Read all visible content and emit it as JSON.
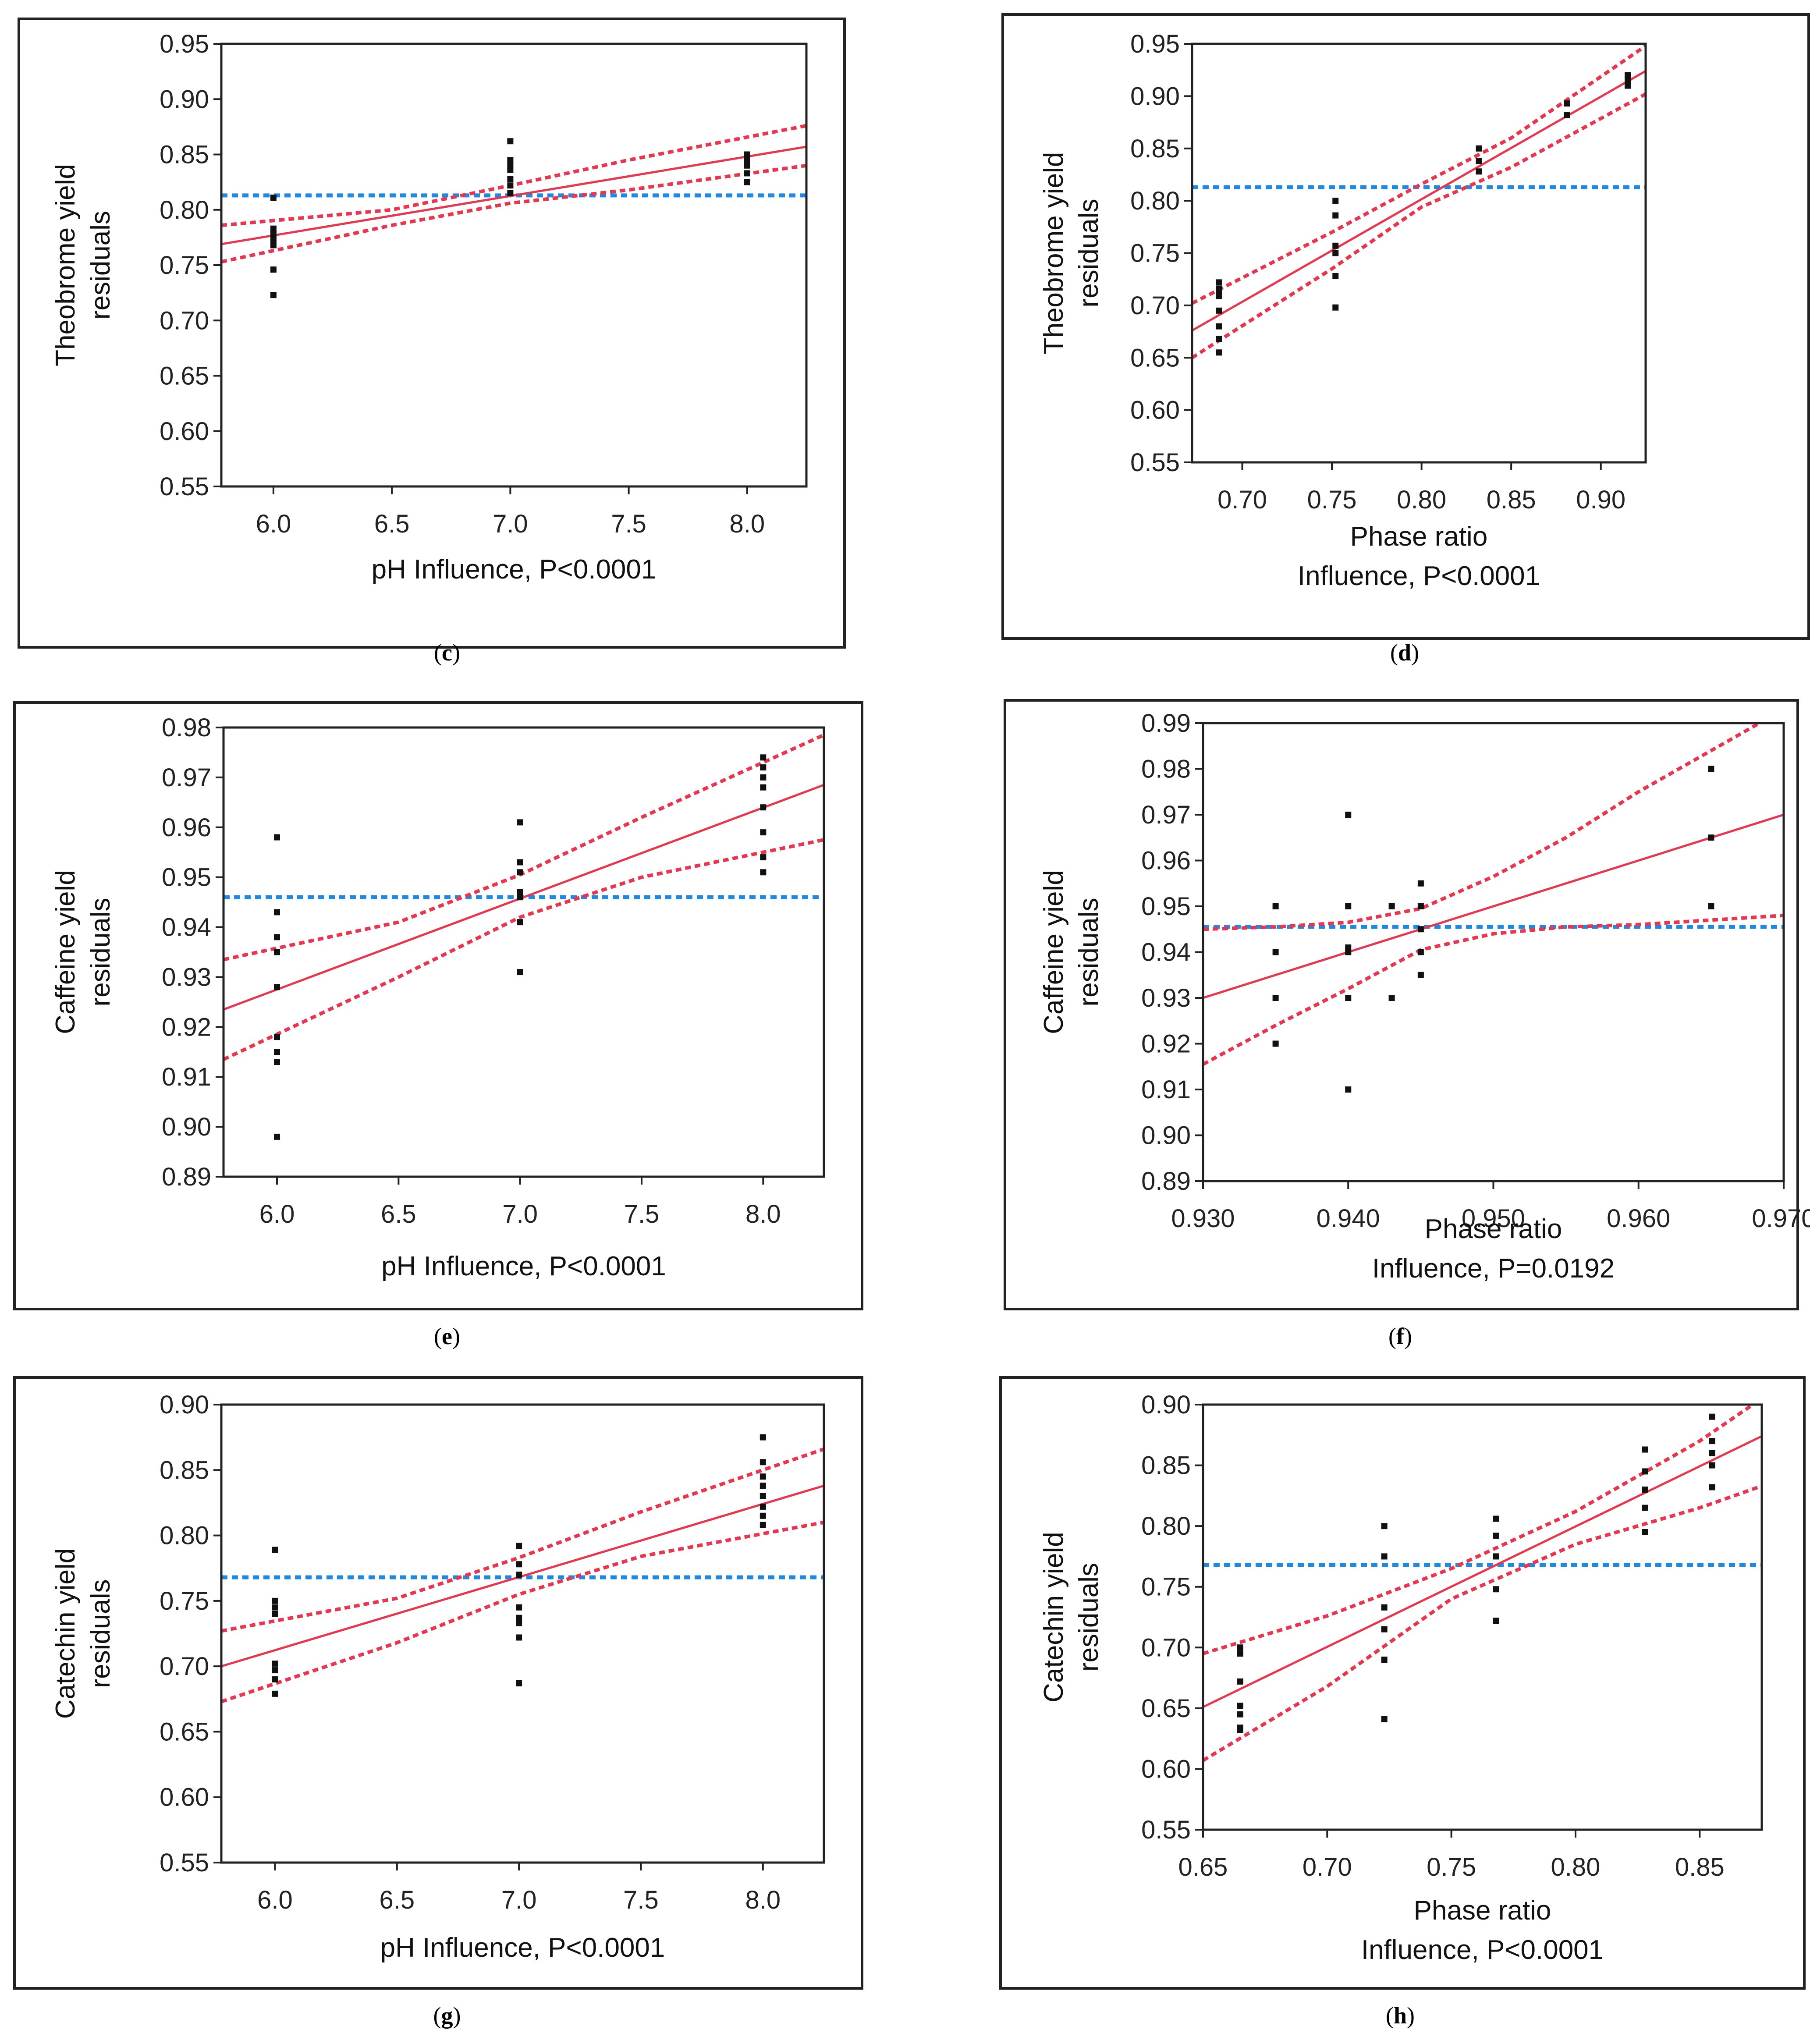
{
  "figure": {
    "colors": {
      "fit": "#e8364e",
      "ci": "#e8364e",
      "mean": "#1e88e5",
      "points": "#111111",
      "frame": "#222222"
    }
  },
  "chart_data": [
    {
      "id": "c",
      "caption": "c",
      "type": "scatter",
      "ylabel_lines": [
        "Theobrome yield",
        "residuals"
      ],
      "xlabel_lines": [
        "pH Influence, P<0.0001"
      ],
      "xlim": [
        5.78,
        8.25
      ],
      "ylim": [
        0.55,
        0.95
      ],
      "xticks": [
        6.0,
        6.5,
        7.0,
        7.5,
        8.0
      ],
      "xtick_labels": [
        "6.0",
        "6.5",
        "7.0",
        "7.5",
        "8.0"
      ],
      "yticks": [
        0.55,
        0.6,
        0.65,
        0.7,
        0.75,
        0.8,
        0.85,
        0.9,
        0.95
      ],
      "ytick_labels": [
        "0.55",
        "0.60",
        "0.65",
        "0.70",
        "0.75",
        "0.80",
        "0.85",
        "0.90",
        "0.95"
      ],
      "mean": 0.813,
      "fit": [
        [
          5.78,
          0.769
        ],
        [
          8.25,
          0.857
        ]
      ],
      "ci_upper": [
        [
          5.78,
          0.786
        ],
        [
          6.5,
          0.8
        ],
        [
          7.0,
          0.822
        ],
        [
          7.5,
          0.845
        ],
        [
          8.25,
          0.876
        ]
      ],
      "ci_lower": [
        [
          5.78,
          0.753
        ],
        [
          6.5,
          0.786
        ],
        [
          7.0,
          0.806
        ],
        [
          7.5,
          0.818
        ],
        [
          8.25,
          0.84
        ]
      ],
      "points": [
        {
          "x": 6.0,
          "y": 0.811
        },
        {
          "x": 6.0,
          "y": 0.783
        },
        {
          "x": 6.0,
          "y": 0.778
        },
        {
          "x": 6.0,
          "y": 0.773
        },
        {
          "x": 6.0,
          "y": 0.768
        },
        {
          "x": 6.0,
          "y": 0.746
        },
        {
          "x": 6.0,
          "y": 0.723
        },
        {
          "x": 7.0,
          "y": 0.862
        },
        {
          "x": 7.0,
          "y": 0.845
        },
        {
          "x": 7.0,
          "y": 0.84
        },
        {
          "x": 7.0,
          "y": 0.836
        },
        {
          "x": 7.0,
          "y": 0.828
        },
        {
          "x": 7.0,
          "y": 0.822
        },
        {
          "x": 7.0,
          "y": 0.815
        },
        {
          "x": 8.0,
          "y": 0.85
        },
        {
          "x": 8.0,
          "y": 0.845
        },
        {
          "x": 8.0,
          "y": 0.84
        },
        {
          "x": 8.0,
          "y": 0.833
        },
        {
          "x": 8.0,
          "y": 0.825
        }
      ]
    },
    {
      "id": "d",
      "caption": "d",
      "type": "scatter",
      "ylabel_lines": [
        "Theobrome yield",
        "residuals"
      ],
      "xlabel_lines": [
        "Phase ratio",
        "Influence, P<0.0001"
      ],
      "xlim": [
        0.672,
        0.925
      ],
      "ylim": [
        0.55,
        0.95
      ],
      "xticks": [
        0.7,
        0.75,
        0.8,
        0.85,
        0.9
      ],
      "xtick_labels": [
        "0.70",
        "0.75",
        "0.80",
        "0.85",
        "0.90"
      ],
      "yticks": [
        0.55,
        0.6,
        0.65,
        0.7,
        0.75,
        0.8,
        0.85,
        0.9,
        0.95
      ],
      "ytick_labels": [
        "0.55",
        "0.60",
        "0.65",
        "0.70",
        "0.75",
        "0.80",
        "0.85",
        "0.90",
        "0.95"
      ],
      "mean": 0.813,
      "fit": [
        [
          0.672,
          0.676
        ],
        [
          0.925,
          0.924
        ]
      ],
      "ci_upper": [
        [
          0.672,
          0.702
        ],
        [
          0.75,
          0.77
        ],
        [
          0.8,
          0.816
        ],
        [
          0.85,
          0.86
        ],
        [
          0.925,
          0.948
        ]
      ],
      "ci_lower": [
        [
          0.672,
          0.65
        ],
        [
          0.75,
          0.735
        ],
        [
          0.8,
          0.794
        ],
        [
          0.85,
          0.832
        ],
        [
          0.925,
          0.902
        ]
      ],
      "points": [
        {
          "x": 0.687,
          "y": 0.722
        },
        {
          "x": 0.687,
          "y": 0.716
        },
        {
          "x": 0.687,
          "y": 0.713
        },
        {
          "x": 0.687,
          "y": 0.709
        },
        {
          "x": 0.687,
          "y": 0.695
        },
        {
          "x": 0.687,
          "y": 0.68
        },
        {
          "x": 0.687,
          "y": 0.668
        },
        {
          "x": 0.687,
          "y": 0.655
        },
        {
          "x": 0.752,
          "y": 0.8
        },
        {
          "x": 0.752,
          "y": 0.786
        },
        {
          "x": 0.752,
          "y": 0.757
        },
        {
          "x": 0.752,
          "y": 0.75
        },
        {
          "x": 0.752,
          "y": 0.728
        },
        {
          "x": 0.752,
          "y": 0.698
        },
        {
          "x": 0.832,
          "y": 0.85
        },
        {
          "x": 0.832,
          "y": 0.838
        },
        {
          "x": 0.832,
          "y": 0.828
        },
        {
          "x": 0.881,
          "y": 0.893
        },
        {
          "x": 0.881,
          "y": 0.882
        },
        {
          "x": 0.915,
          "y": 0.92
        },
        {
          "x": 0.915,
          "y": 0.915
        },
        {
          "x": 0.915,
          "y": 0.91
        }
      ]
    },
    {
      "id": "e",
      "caption": "e",
      "type": "scatter",
      "ylabel_lines": [
        "Caffeine yield",
        "residuals"
      ],
      "xlabel_lines": [
        "pH Influence, P<0.0001"
      ],
      "xlim": [
        5.78,
        8.25
      ],
      "ylim": [
        0.89,
        0.98
      ],
      "xticks": [
        6.0,
        6.5,
        7.0,
        7.5,
        8.0
      ],
      "xtick_labels": [
        "6.0",
        "6.5",
        "7.0",
        "7.5",
        "8.0"
      ],
      "yticks": [
        0.89,
        0.9,
        0.91,
        0.92,
        0.93,
        0.94,
        0.95,
        0.96,
        0.97,
        0.98
      ],
      "ytick_labels": [
        "0.89",
        "0.90",
        "0.91",
        "0.92",
        "0.93",
        "0.94",
        "0.95",
        "0.96",
        "0.97",
        "0.98"
      ],
      "mean": 0.946,
      "fit": [
        [
          5.78,
          0.9235
        ],
        [
          8.25,
          0.9685
        ]
      ],
      "ci_upper": [
        [
          5.78,
          0.9335
        ],
        [
          6.5,
          0.941
        ],
        [
          7.0,
          0.9505
        ],
        [
          7.5,
          0.962
        ],
        [
          8.25,
          0.9785
        ]
      ],
      "ci_lower": [
        [
          5.78,
          0.9135
        ],
        [
          6.5,
          0.93
        ],
        [
          7.0,
          0.942
        ],
        [
          7.5,
          0.95
        ],
        [
          8.25,
          0.9575
        ]
      ],
      "points": [
        {
          "x": 6.0,
          "y": 0.958
        },
        {
          "x": 6.0,
          "y": 0.943
        },
        {
          "x": 6.0,
          "y": 0.938
        },
        {
          "x": 6.0,
          "y": 0.935
        },
        {
          "x": 6.0,
          "y": 0.928
        },
        {
          "x": 6.0,
          "y": 0.918
        },
        {
          "x": 6.0,
          "y": 0.915
        },
        {
          "x": 6.0,
          "y": 0.913
        },
        {
          "x": 6.0,
          "y": 0.898
        },
        {
          "x": 7.0,
          "y": 0.961
        },
        {
          "x": 7.0,
          "y": 0.953
        },
        {
          "x": 7.0,
          "y": 0.951
        },
        {
          "x": 7.0,
          "y": 0.947
        },
        {
          "x": 7.0,
          "y": 0.946
        },
        {
          "x": 7.0,
          "y": 0.941
        },
        {
          "x": 7.0,
          "y": 0.931
        },
        {
          "x": 8.0,
          "y": 0.974
        },
        {
          "x": 8.0,
          "y": 0.972
        },
        {
          "x": 8.0,
          "y": 0.97
        },
        {
          "x": 8.0,
          "y": 0.968
        },
        {
          "x": 8.0,
          "y": 0.964
        },
        {
          "x": 8.0,
          "y": 0.959
        },
        {
          "x": 8.0,
          "y": 0.954
        },
        {
          "x": 8.0,
          "y": 0.951
        }
      ]
    },
    {
      "id": "f",
      "caption": "f",
      "type": "scatter",
      "ylabel_lines": [
        "Caffeine yield",
        "residuals"
      ],
      "xlabel_lines": [
        "Phase ratio",
        "Influence, P=0.0192"
      ],
      "xlim": [
        0.93,
        0.97
      ],
      "ylim": [
        0.89,
        0.99
      ],
      "xticks": [
        0.93,
        0.94,
        0.95,
        0.96,
        0.97
      ],
      "xtick_labels": [
        "0.930",
        "0.940",
        "0.950",
        "0.960",
        "0.970"
      ],
      "yticks": [
        0.89,
        0.9,
        0.91,
        0.92,
        0.93,
        0.94,
        0.95,
        0.96,
        0.97,
        0.98,
        0.99
      ],
      "ytick_labels": [
        "0.89",
        "0.90",
        "0.91",
        "0.92",
        "0.93",
        "0.94",
        "0.95",
        "0.96",
        "0.97",
        "0.98",
        "0.99"
      ],
      "mean": 0.9455,
      "fit": [
        [
          0.93,
          0.93
        ],
        [
          0.97,
          0.97
        ]
      ],
      "ci_upper": [
        [
          0.93,
          0.945
        ],
        [
          0.935,
          0.9455
        ],
        [
          0.94,
          0.9465
        ],
        [
          0.945,
          0.9495
        ],
        [
          0.95,
          0.9565
        ],
        [
          0.955,
          0.965
        ],
        [
          0.96,
          0.975
        ],
        [
          0.965,
          0.984
        ],
        [
          0.97,
          0.993
        ]
      ],
      "ci_lower": [
        [
          0.93,
          0.9155
        ],
        [
          0.935,
          0.924
        ],
        [
          0.94,
          0.932
        ],
        [
          0.945,
          0.9405
        ],
        [
          0.95,
          0.944
        ],
        [
          0.955,
          0.9455
        ],
        [
          0.96,
          0.946
        ],
        [
          0.965,
          0.947
        ],
        [
          0.97,
          0.948
        ]
      ],
      "points": [
        {
          "x": 0.935,
          "y": 0.95
        },
        {
          "x": 0.935,
          "y": 0.94
        },
        {
          "x": 0.935,
          "y": 0.93
        },
        {
          "x": 0.935,
          "y": 0.92
        },
        {
          "x": 0.94,
          "y": 0.97
        },
        {
          "x": 0.94,
          "y": 0.95
        },
        {
          "x": 0.94,
          "y": 0.941
        },
        {
          "x": 0.94,
          "y": 0.94
        },
        {
          "x": 0.94,
          "y": 0.93
        },
        {
          "x": 0.94,
          "y": 0.91
        },
        {
          "x": 0.943,
          "y": 0.95
        },
        {
          "x": 0.943,
          "y": 0.93
        },
        {
          "x": 0.945,
          "y": 0.955
        },
        {
          "x": 0.945,
          "y": 0.95
        },
        {
          "x": 0.945,
          "y": 0.945
        },
        {
          "x": 0.945,
          "y": 0.94
        },
        {
          "x": 0.945,
          "y": 0.935
        },
        {
          "x": 0.965,
          "y": 0.98
        },
        {
          "x": 0.965,
          "y": 0.965
        },
        {
          "x": 0.965,
          "y": 0.95
        }
      ]
    },
    {
      "id": "g",
      "caption": "g",
      "type": "scatter",
      "ylabel_lines": [
        "Catechin yield",
        "residuals"
      ],
      "xlabel_lines": [
        "pH Influence, P<0.0001"
      ],
      "xlim": [
        5.78,
        8.25
      ],
      "ylim": [
        0.55,
        0.9
      ],
      "xticks": [
        6.0,
        6.5,
        7.0,
        7.5,
        8.0
      ],
      "xtick_labels": [
        "6.0",
        "6.5",
        "7.0",
        "7.5",
        "8.0"
      ],
      "yticks": [
        0.55,
        0.6,
        0.65,
        0.7,
        0.75,
        0.8,
        0.85,
        0.9
      ],
      "ytick_labels": [
        "0.55",
        "0.60",
        "0.65",
        "0.70",
        "0.75",
        "0.80",
        "0.85",
        "0.90"
      ],
      "mean": 0.768,
      "fit": [
        [
          5.78,
          0.7
        ],
        [
          8.25,
          0.838
        ]
      ],
      "ci_upper": [
        [
          5.78,
          0.727
        ],
        [
          6.5,
          0.752
        ],
        [
          7.0,
          0.783
        ],
        [
          7.5,
          0.818
        ],
        [
          8.25,
          0.866
        ]
      ],
      "ci_lower": [
        [
          5.78,
          0.673
        ],
        [
          6.5,
          0.718
        ],
        [
          7.0,
          0.755
        ],
        [
          7.5,
          0.784
        ],
        [
          8.25,
          0.81
        ]
      ],
      "points": [
        {
          "x": 6.0,
          "y": 0.789
        },
        {
          "x": 6.0,
          "y": 0.75
        },
        {
          "x": 6.0,
          "y": 0.745
        },
        {
          "x": 6.0,
          "y": 0.74
        },
        {
          "x": 6.0,
          "y": 0.702
        },
        {
          "x": 6.0,
          "y": 0.697
        },
        {
          "x": 6.0,
          "y": 0.69
        },
        {
          "x": 6.0,
          "y": 0.679
        },
        {
          "x": 7.0,
          "y": 0.792
        },
        {
          "x": 7.0,
          "y": 0.778
        },
        {
          "x": 7.0,
          "y": 0.77
        },
        {
          "x": 7.0,
          "y": 0.745
        },
        {
          "x": 7.0,
          "y": 0.737
        },
        {
          "x": 7.0,
          "y": 0.733
        },
        {
          "x": 7.0,
          "y": 0.722
        },
        {
          "x": 7.0,
          "y": 0.687
        },
        {
          "x": 8.0,
          "y": 0.875
        },
        {
          "x": 8.0,
          "y": 0.856
        },
        {
          "x": 8.0,
          "y": 0.845
        },
        {
          "x": 8.0,
          "y": 0.838
        },
        {
          "x": 8.0,
          "y": 0.83
        },
        {
          "x": 8.0,
          "y": 0.822
        },
        {
          "x": 8.0,
          "y": 0.815
        },
        {
          "x": 8.0,
          "y": 0.808
        }
      ]
    },
    {
      "id": "h",
      "caption": "h",
      "type": "scatter",
      "ylabel_lines": [
        "Catechin yield",
        "residuals"
      ],
      "xlabel_lines": [
        "Phase ratio",
        "Influence, P<0.0001"
      ],
      "xlim": [
        0.65,
        0.875
      ],
      "ylim": [
        0.55,
        0.9
      ],
      "xticks": [
        0.65,
        0.7,
        0.75,
        0.8,
        0.85
      ],
      "xtick_labels": [
        "0.65",
        "0.70",
        "0.75",
        "0.80",
        "0.85"
      ],
      "yticks": [
        0.55,
        0.6,
        0.65,
        0.7,
        0.75,
        0.8,
        0.85,
        0.9
      ],
      "ytick_labels": [
        "0.55",
        "0.60",
        "0.65",
        "0.70",
        "0.75",
        "0.80",
        "0.85",
        "0.90"
      ],
      "mean": 0.768,
      "fit": [
        [
          0.65,
          0.651
        ],
        [
          0.875,
          0.874
        ]
      ],
      "ci_upper": [
        [
          0.65,
          0.695
        ],
        [
          0.7,
          0.726
        ],
        [
          0.75,
          0.765
        ],
        [
          0.8,
          0.812
        ],
        [
          0.85,
          0.87
        ],
        [
          0.875,
          0.905
        ]
      ],
      "ci_lower": [
        [
          0.65,
          0.607
        ],
        [
          0.7,
          0.668
        ],
        [
          0.75,
          0.74
        ],
        [
          0.8,
          0.785
        ],
        [
          0.85,
          0.815
        ],
        [
          0.875,
          0.833
        ]
      ],
      "points": [
        {
          "x": 0.665,
          "y": 0.7
        },
        {
          "x": 0.665,
          "y": 0.695
        },
        {
          "x": 0.665,
          "y": 0.672
        },
        {
          "x": 0.665,
          "y": 0.652
        },
        {
          "x": 0.665,
          "y": 0.645
        },
        {
          "x": 0.665,
          "y": 0.634
        },
        {
          "x": 0.665,
          "y": 0.632
        },
        {
          "x": 0.723,
          "y": 0.8
        },
        {
          "x": 0.723,
          "y": 0.775
        },
        {
          "x": 0.723,
          "y": 0.733
        },
        {
          "x": 0.723,
          "y": 0.715
        },
        {
          "x": 0.723,
          "y": 0.69
        },
        {
          "x": 0.723,
          "y": 0.641
        },
        {
          "x": 0.768,
          "y": 0.806
        },
        {
          "x": 0.768,
          "y": 0.792
        },
        {
          "x": 0.768,
          "y": 0.775
        },
        {
          "x": 0.768,
          "y": 0.748
        },
        {
          "x": 0.768,
          "y": 0.722
        },
        {
          "x": 0.828,
          "y": 0.863
        },
        {
          "x": 0.828,
          "y": 0.845
        },
        {
          "x": 0.828,
          "y": 0.83
        },
        {
          "x": 0.828,
          "y": 0.815
        },
        {
          "x": 0.828,
          "y": 0.795
        },
        {
          "x": 0.855,
          "y": 0.89
        },
        {
          "x": 0.855,
          "y": 0.87
        },
        {
          "x": 0.855,
          "y": 0.86
        },
        {
          "x": 0.855,
          "y": 0.85
        },
        {
          "x": 0.855,
          "y": 0.832
        }
      ]
    }
  ]
}
